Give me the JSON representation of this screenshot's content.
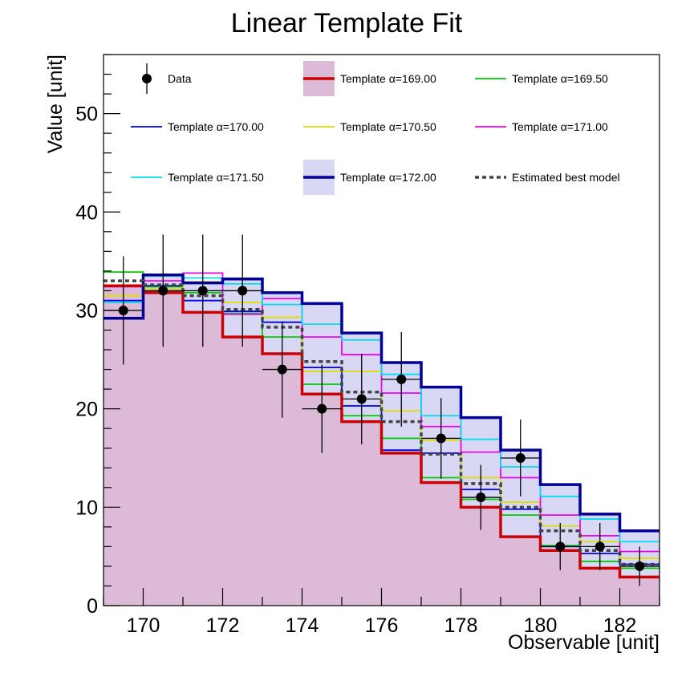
{
  "chart_data": {
    "type": "histogram",
    "title": "Linear Template Fit",
    "xlabel": "Observable [unit]",
    "ylabel": "Value [unit]",
    "xlim": [
      169,
      183
    ],
    "ylim": [
      0,
      56
    ],
    "bin_edges": [
      169,
      170,
      171,
      172,
      173,
      174,
      175,
      176,
      177,
      178,
      179,
      180,
      181,
      182,
      183
    ],
    "x_ticks": [
      170,
      172,
      174,
      176,
      178,
      180,
      182
    ],
    "y_ticks": [
      0,
      10,
      20,
      30,
      40,
      50
    ],
    "colors": {
      "fill_169": "#dcbad8",
      "fill_172_band": "#d8d8f5",
      "data": "#000000",
      "estimated": "#444444"
    },
    "legend": {
      "data": "Data",
      "t169": "Template α=169.00",
      "t1695": "Template α=169.50",
      "t170": "Template α=170.00",
      "t1705": "Template α=170.50",
      "t171": "Template α=171.00",
      "t1715": "Template α=171.50",
      "t172": "Template α=172.00",
      "best": "Estimated best model"
    },
    "series": [
      {
        "key": "t169",
        "name": "Template α=169.00",
        "color": "#cc0000",
        "width": 3.5,
        "values": [
          32.5,
          31.8,
          29.8,
          27.3,
          25.6,
          21.5,
          18.7,
          15.5,
          12.5,
          10.0,
          7.0,
          5.6,
          3.8,
          2.9
        ]
      },
      {
        "key": "t1695",
        "name": "Template α=169.50",
        "color": "#00cc00",
        "width": 1.8,
        "values": [
          33.9,
          32.4,
          31.8,
          29.7,
          27.3,
          22.5,
          19.3,
          17.0,
          13.0,
          10.8,
          9.2,
          6.1,
          4.5,
          3.8
        ]
      },
      {
        "key": "t170",
        "name": "Template α=170.00",
        "color": "#0000ee",
        "width": 1.8,
        "values": [
          31.0,
          32.5,
          31.0,
          29.9,
          28.8,
          24.2,
          20.3,
          15.8,
          15.5,
          11.8,
          9.8,
          6.0,
          5.3,
          4.2
        ]
      },
      {
        "key": "t1705",
        "name": "Template α=170.50",
        "color": "#dddd00",
        "width": 1.8,
        "values": [
          31.5,
          32.2,
          32.9,
          30.8,
          29.3,
          23.8,
          23.8,
          19.8,
          16.8,
          13.0,
          10.5,
          8.1,
          6.5,
          4.8
        ]
      },
      {
        "key": "t171",
        "name": "Template α=171.00",
        "color": "#ee00ee",
        "width": 1.8,
        "values": [
          32.4,
          33.0,
          33.8,
          29.6,
          31.2,
          27.3,
          25.5,
          21.6,
          18.2,
          15.6,
          13.0,
          9.2,
          7.1,
          5.5
        ]
      },
      {
        "key": "t1715",
        "name": "Template α=171.50",
        "color": "#00ddee",
        "width": 1.8,
        "values": [
          30.8,
          33.5,
          33.3,
          32.7,
          30.6,
          28.6,
          27.0,
          23.5,
          19.3,
          16.9,
          14.1,
          11.1,
          8.8,
          6.5
        ]
      },
      {
        "key": "t172",
        "name": "Template α=172.00",
        "color": "#000099",
        "width": 3.5,
        "values": [
          29.2,
          33.6,
          32.8,
          33.2,
          31.8,
          30.7,
          27.7,
          24.7,
          22.2,
          19.1,
          15.8,
          12.3,
          9.3,
          7.6
        ]
      },
      {
        "key": "best",
        "name": "Estimated best model",
        "color": "#444444",
        "width": 3.5,
        "dash": "5,4",
        "values": [
          33.0,
          32.6,
          31.5,
          30.1,
          28.3,
          24.8,
          21.7,
          18.7,
          15.4,
          12.4,
          10.0,
          7.6,
          5.6,
          4.2
        ]
      }
    ],
    "data_points": {
      "name": "Data",
      "x": [
        169.5,
        170.5,
        171.5,
        172.5,
        173.5,
        174.5,
        175.5,
        176.5,
        177.5,
        178.5,
        179.5,
        180.5,
        181.5,
        182.5
      ],
      "y": [
        30,
        32,
        32,
        32,
        24,
        20,
        21,
        23,
        17,
        11,
        15,
        6,
        6,
        4
      ],
      "yerr": [
        5.5,
        5.7,
        5.7,
        5.7,
        4.9,
        4.5,
        4.6,
        4.8,
        4.1,
        3.3,
        3.9,
        2.4,
        2.4,
        2.0
      ]
    }
  }
}
